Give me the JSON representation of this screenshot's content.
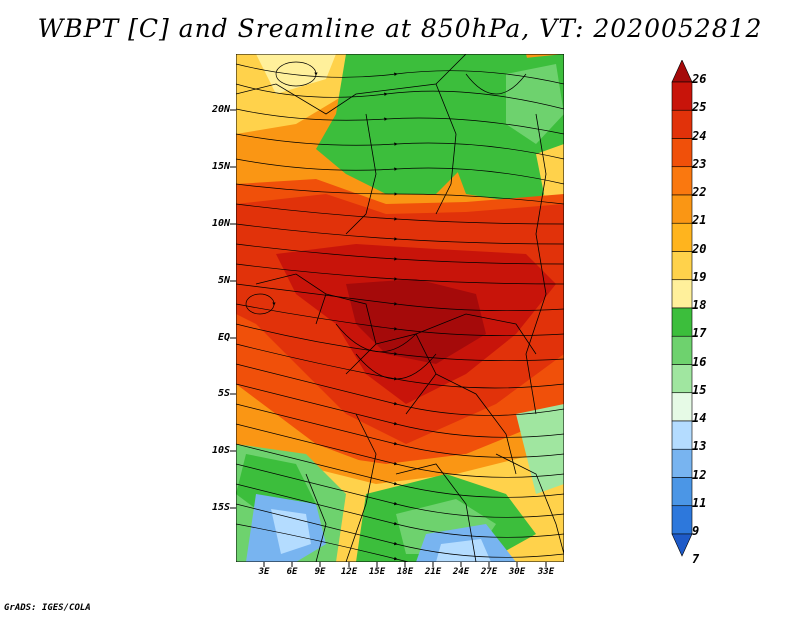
{
  "title": "WBPT [C] and Sreamline at 850hPa, VT: 2020052812",
  "credit": "GrADS: IGES/COLA",
  "lat_labels": [
    "20N",
    "15N",
    "10N",
    "5N",
    "EQ",
    "5S",
    "10S",
    "15S"
  ],
  "lon_labels": [
    "3E",
    "6E",
    "9E",
    "12E",
    "15E",
    "18E",
    "21E",
    "24E",
    "27E",
    "30E",
    "33E"
  ],
  "colorbar": {
    "labels": [
      "26",
      "25",
      "24",
      "23",
      "22",
      "21",
      "20",
      "19",
      "18",
      "17",
      "16",
      "15",
      "14",
      "13",
      "12",
      "11",
      "9",
      "7"
    ],
    "colors": [
      "#a50a0a",
      "#c8140a",
      "#e1320a",
      "#f0500a",
      "#fa780f",
      "#fa9614",
      "#ffb41e",
      "#ffd24b",
      "#fff09b",
      "#3cbe3c",
      "#6ed26e",
      "#a0e6a0",
      "#e6fae6",
      "#b4dcff",
      "#78b4f0",
      "#4b96e6",
      "#2d78dc",
      "#1e5ac8"
    ]
  }
}
